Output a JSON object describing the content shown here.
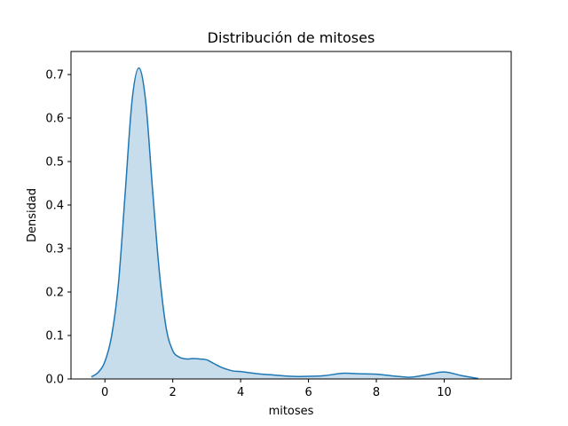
{
  "chart_data": {
    "type": "area",
    "title": "Distribución de mitoses",
    "xlabel": "mitoses",
    "ylabel": "Densidad",
    "xlim": [
      -1.1,
      11.9
    ],
    "ylim": [
      0,
      0.7
    ],
    "x_ticks": [
      0,
      2,
      4,
      6,
      8,
      10
    ],
    "y_ticks": [
      0.0,
      0.1,
      0.2,
      0.3,
      0.4,
      0.5,
      0.6,
      0.7
    ],
    "grid": false,
    "legend": "none",
    "colors": {
      "line": "#1f77b4",
      "fill": "#1f77b4",
      "fill_opacity": 0.25
    },
    "series": [
      {
        "x": [
          -0.4,
          -0.2,
          0.0,
          0.2,
          0.4,
          0.6,
          0.8,
          1.0,
          1.2,
          1.4,
          1.6,
          1.8,
          2.0,
          2.2,
          2.4,
          2.6,
          2.8,
          3.0,
          3.2,
          3.4,
          3.6,
          3.8,
          4.0,
          4.5,
          5.0,
          5.5,
          6.0,
          6.5,
          7.0,
          7.5,
          8.0,
          8.5,
          9.0,
          9.5,
          10.0,
          10.5,
          11.0
        ],
        "y": [
          0.005,
          0.015,
          0.04,
          0.1,
          0.22,
          0.43,
          0.64,
          0.715,
          0.64,
          0.44,
          0.25,
          0.12,
          0.065,
          0.05,
          0.046,
          0.047,
          0.046,
          0.044,
          0.036,
          0.028,
          0.022,
          0.018,
          0.017,
          0.012,
          0.009,
          0.006,
          0.006,
          0.008,
          0.013,
          0.012,
          0.011,
          0.007,
          0.004,
          0.01,
          0.016,
          0.008,
          0.001
        ]
      }
    ]
  }
}
